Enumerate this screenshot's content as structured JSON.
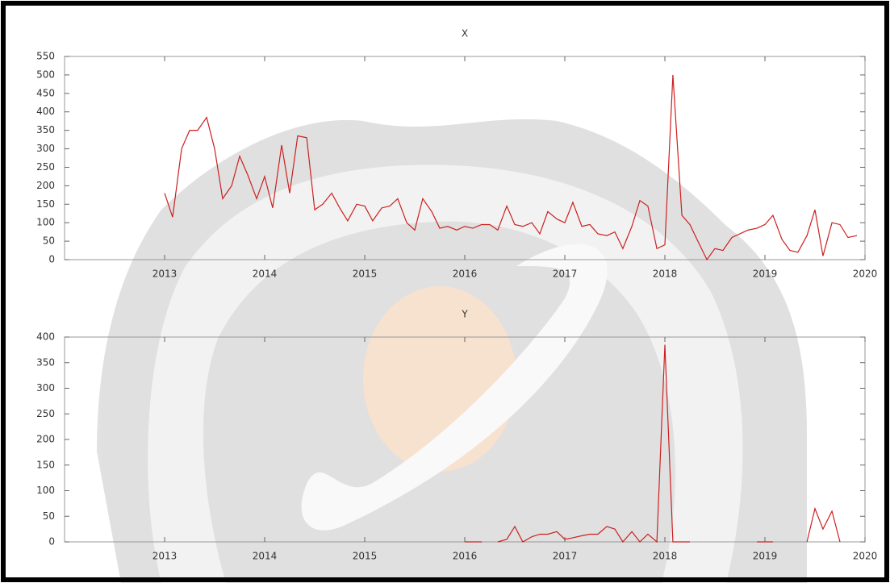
{
  "chart_data": [
    {
      "type": "line",
      "title": "X",
      "x": [
        2013.0,
        2013.08,
        2013.17,
        2013.25,
        2013.33,
        2013.42,
        2013.5,
        2013.58,
        2013.67,
        2013.75,
        2013.83,
        2013.92,
        2014.0,
        2014.08,
        2014.17,
        2014.25,
        2014.33,
        2014.42,
        2014.5,
        2014.58,
        2014.67,
        2014.75,
        2014.83,
        2014.92,
        2015.0,
        2015.08,
        2015.17,
        2015.25,
        2015.33,
        2015.42,
        2015.5,
        2015.58,
        2015.67,
        2015.75,
        2015.83,
        2015.92,
        2016.0,
        2016.08,
        2016.17,
        2016.25,
        2016.33,
        2016.42,
        2016.5,
        2016.58,
        2016.67,
        2016.75,
        2016.83,
        2016.92,
        2017.0,
        2017.08,
        2017.17,
        2017.25,
        2017.33,
        2017.42,
        2017.5,
        2017.58,
        2017.67,
        2017.75,
        2017.83,
        2017.92,
        2018.0,
        2018.08,
        2018.17,
        2018.25,
        2018.33,
        2018.42,
        2018.5,
        2018.58,
        2018.67,
        2018.75,
        2018.83,
        2018.92,
        2019.0,
        2019.08,
        2019.17,
        2019.25,
        2019.33,
        2019.42,
        2019.5,
        2019.58,
        2019.67,
        2019.75,
        2019.83,
        2019.92
      ],
      "series": [
        {
          "color": "#cc2020",
          "values": [
            180,
            115,
            300,
            350,
            350,
            385,
            300,
            165,
            200,
            280,
            230,
            165,
            225,
            140,
            310,
            180,
            335,
            330,
            135,
            150,
            180,
            140,
            105,
            150,
            145,
            105,
            140,
            145,
            165,
            100,
            80,
            165,
            130,
            85,
            90,
            80,
            90,
            85,
            95,
            95,
            80,
            145,
            95,
            90,
            100,
            70,
            130,
            110,
            100,
            155,
            90,
            95,
            70,
            65,
            75,
            30,
            90,
            160,
            145,
            30,
            40,
            500,
            120,
            95,
            50,
            0,
            30,
            25,
            60,
            70,
            80,
            85,
            95,
            120,
            55,
            25,
            20,
            65,
            135,
            10,
            100,
            95,
            60,
            65
          ]
        }
      ],
      "xlim": [
        2012,
        2020
      ],
      "xticks": [
        2013,
        2014,
        2015,
        2016,
        2017,
        2018,
        2019,
        2020
      ],
      "ylim": [
        0,
        550
      ],
      "yticks": [
        0,
        50,
        100,
        150,
        200,
        250,
        300,
        350,
        400,
        450,
        500,
        550
      ]
    },
    {
      "type": "line",
      "title": "Y",
      "x": [
        2016.0,
        2016.08,
        2016.17,
        2016.25,
        2016.33,
        2016.42,
        2016.5,
        2016.58,
        2016.67,
        2016.75,
        2016.83,
        2016.92,
        2017.0,
        2017.08,
        2017.17,
        2017.25,
        2017.33,
        2017.42,
        2017.5,
        2017.58,
        2017.67,
        2017.75,
        2017.83,
        2017.92,
        2018.0,
        2018.08,
        2018.17,
        2018.25,
        2018.33,
        2018.92,
        2019.0,
        2019.08,
        2019.17,
        2019.42,
        2019.5,
        2019.58,
        2019.67,
        2019.75
      ],
      "series": [
        {
          "color": "#cc2020",
          "values": [
            0,
            0,
            0,
            null,
            0,
            5,
            30,
            0,
            10,
            15,
            15,
            20,
            5,
            8,
            12,
            15,
            15,
            30,
            25,
            0,
            20,
            0,
            15,
            0,
            385,
            0,
            0,
            0,
            null,
            0,
            0,
            0,
            null,
            0,
            65,
            25,
            60,
            0
          ]
        }
      ],
      "xlim": [
        2012,
        2020
      ],
      "xticks": [
        2013,
        2014,
        2015,
        2016,
        2017,
        2018,
        2019,
        2020
      ],
      "ylim": [
        0,
        400
      ],
      "yticks": [
        0,
        50,
        100,
        150,
        200,
        250,
        300,
        350,
        400
      ]
    }
  ]
}
